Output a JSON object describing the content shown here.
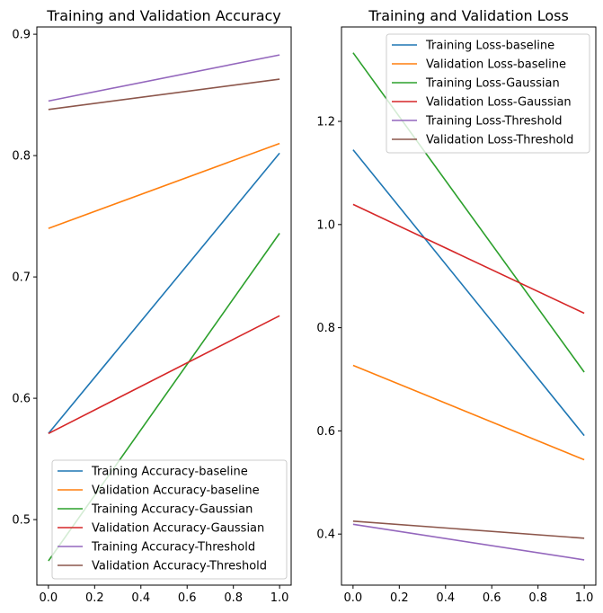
{
  "chart_data": [
    {
      "type": "line",
      "title": "Training and Validation Accuracy",
      "xlabel": "",
      "ylabel": "",
      "xlim": [
        -0.05,
        1.05
      ],
      "ylim": [
        0.446,
        0.906
      ],
      "xticks": [
        0.0,
        0.2,
        0.4,
        0.6,
        0.8,
        1.0
      ],
      "xtick_labels": [
        "0.0",
        "0.2",
        "0.4",
        "0.6",
        "0.8",
        "1.0"
      ],
      "yticks": [
        0.5,
        0.6,
        0.7,
        0.8,
        0.9
      ],
      "ytick_labels": [
        "0.5",
        "0.6",
        "0.7",
        "0.8",
        "0.9"
      ],
      "grid": false,
      "legend_position": "lower-right",
      "x": [
        0,
        1
      ],
      "series": [
        {
          "name": "Training Accuracy-baseline",
          "color": "#1f77b4",
          "values": [
            0.571,
            0.802
          ]
        },
        {
          "name": "Validation Accuracy-baseline",
          "color": "#ff7f0e",
          "values": [
            0.74,
            0.81
          ]
        },
        {
          "name": "Training Accuracy-Gaussian",
          "color": "#2ca02c",
          "values": [
            0.466,
            0.736
          ]
        },
        {
          "name": "Validation Accuracy-Gaussian",
          "color": "#d62728",
          "values": [
            0.571,
            0.668
          ]
        },
        {
          "name": "Training Accuracy-Threshold",
          "color": "#9467bd",
          "values": [
            0.845,
            0.883
          ]
        },
        {
          "name": "Validation Accuracy-Threshold",
          "color": "#8c564b",
          "values": [
            0.838,
            0.863
          ]
        }
      ]
    },
    {
      "type": "line",
      "title": "Training and Validation Loss",
      "xlabel": "",
      "ylabel": "",
      "xlim": [
        -0.05,
        1.05
      ],
      "ylim": [
        0.301,
        1.383
      ],
      "xticks": [
        0.0,
        0.2,
        0.4,
        0.6,
        0.8,
        1.0
      ],
      "xtick_labels": [
        "0.0",
        "0.2",
        "0.4",
        "0.6",
        "0.8",
        "1.0"
      ],
      "yticks": [
        0.4,
        0.6,
        0.8,
        1.0,
        1.2
      ],
      "ytick_labels": [
        "0.4",
        "0.6",
        "0.8",
        "1.0",
        "1.2"
      ],
      "grid": false,
      "legend_position": "upper-right",
      "x": [
        0,
        1
      ],
      "series": [
        {
          "name": "Training Loss-baseline",
          "color": "#1f77b4",
          "values": [
            1.145,
            0.591
          ]
        },
        {
          "name": "Validation Loss-baseline",
          "color": "#ff7f0e",
          "values": [
            0.727,
            0.544
          ]
        },
        {
          "name": "Training Loss-Gaussian",
          "color": "#2ca02c",
          "values": [
            1.333,
            0.714
          ]
        },
        {
          "name": "Validation Loss-Gaussian",
          "color": "#d62728",
          "values": [
            1.039,
            0.828
          ]
        },
        {
          "name": "Training Loss-Threshold",
          "color": "#9467bd",
          "values": [
            0.419,
            0.35
          ]
        },
        {
          "name": "Validation Loss-Threshold",
          "color": "#8c564b",
          "values": [
            0.425,
            0.392
          ]
        }
      ]
    }
  ]
}
